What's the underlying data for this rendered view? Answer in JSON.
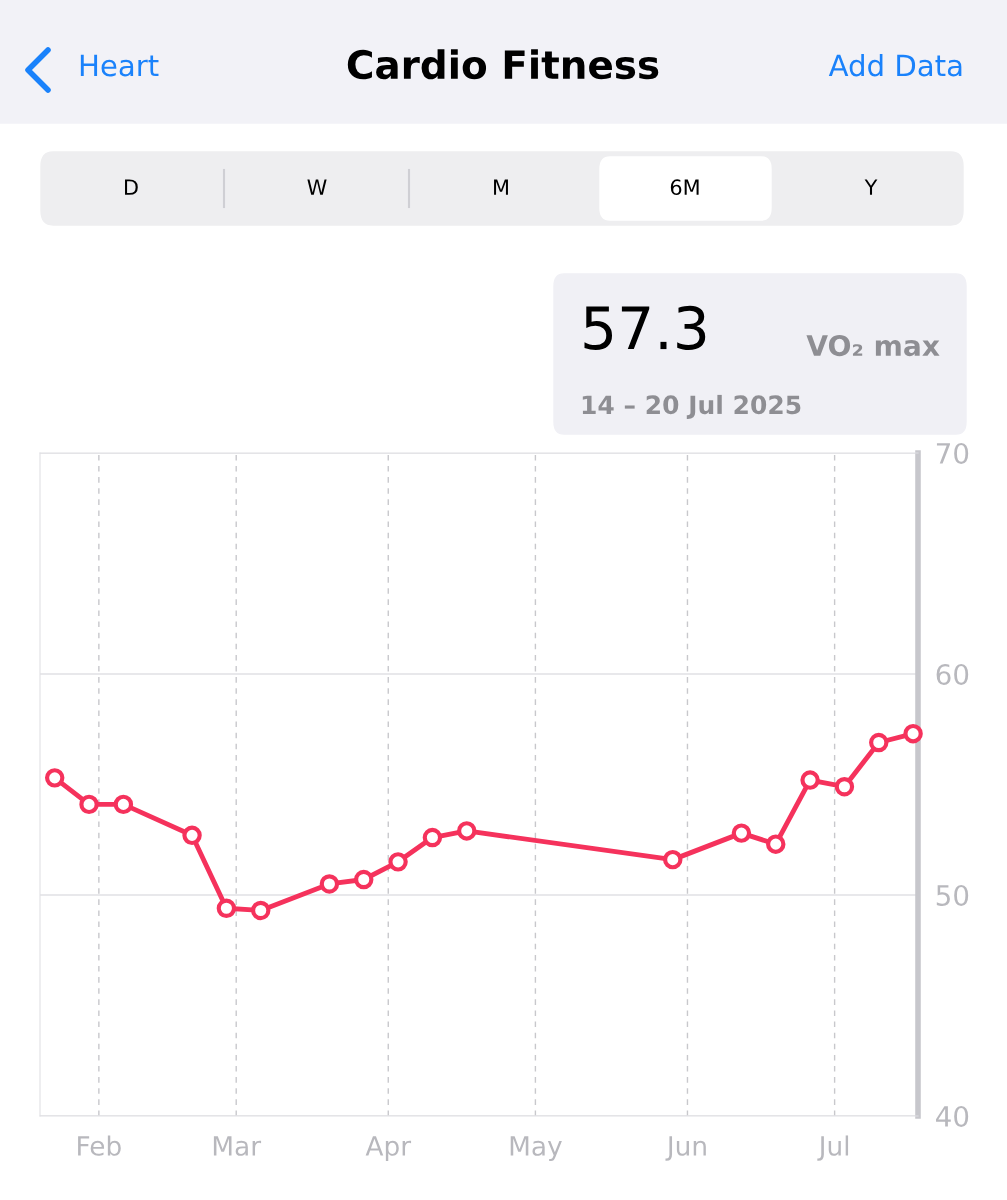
{
  "chart_data": {
    "type": "line",
    "title": "Cardio Fitness",
    "annotations": [
      "Heart",
      "Add Data",
      "D",
      "W",
      "M",
      "6M",
      "Y",
      "57.3",
      "VO₂ max",
      "14 – 20 Jul 2025"
    ],
    "x": [
      "2025-01-23",
      "2025-01-30",
      "2025-02-06",
      "2025-02-20",
      "2025-02-27",
      "2025-03-06",
      "2025-03-20",
      "2025-03-27",
      "2025-04-03",
      "2025-04-10",
      "2025-04-17",
      "2025-05-29",
      "2025-06-12",
      "2025-06-19",
      "2025-06-26",
      "2025-07-03",
      "2025-07-10",
      "2025-07-17"
    ],
    "series": [
      {
        "color": "#f5325c",
        "values": [
          55.3,
          54.1,
          54.1,
          52.7,
          49.4,
          49.3,
          50.5,
          50.7,
          51.5,
          52.6,
          52.9,
          51.6,
          52.8,
          52.3,
          55.2,
          54.9,
          56.9,
          57.3
        ]
      }
    ],
    "xlim": [
      "2025-01-20",
      "2025-07-18"
    ],
    "xticks": [
      {
        "value": "2025-02-01",
        "label": "Feb"
      },
      {
        "value": "2025-03-01",
        "label": "Mar"
      },
      {
        "value": "2025-04-01",
        "label": "Apr"
      },
      {
        "value": "2025-05-01",
        "label": "May"
      },
      {
        "value": "2025-06-01",
        "label": "Jun"
      },
      {
        "value": "2025-07-01",
        "label": "Jul"
      }
    ],
    "ylim": [
      40,
      70
    ],
    "yticks": [
      40,
      50,
      60,
      70
    ],
    "grid": true,
    "marker": "circle",
    "line_style": "solid",
    "legend": false
  }
}
